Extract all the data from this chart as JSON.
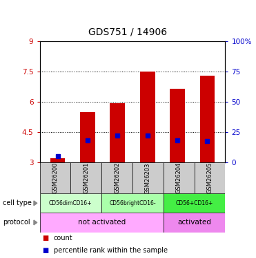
{
  "title": "GDS751 / 14906",
  "samples": [
    "GSM26200",
    "GSM26201",
    "GSM26202",
    "GSM26203",
    "GSM26204",
    "GSM26205"
  ],
  "count_values": [
    3.2,
    5.5,
    5.95,
    7.5,
    6.65,
    7.3
  ],
  "percentile_values": [
    3.3,
    4.1,
    4.35,
    4.35,
    4.1,
    4.05
  ],
  "ylim_left": [
    3,
    9
  ],
  "ylim_right": [
    0,
    100
  ],
  "yticks_left": [
    3,
    4.5,
    6,
    7.5,
    9
  ],
  "yticks_right": [
    0,
    25,
    50,
    75,
    100
  ],
  "ytick_labels_left": [
    "3",
    "4.5",
    "6",
    "7.5",
    "9"
  ],
  "ytick_labels_right": [
    "0",
    "25",
    "50",
    "75",
    "100%"
  ],
  "bar_bottom": 3.0,
  "bar_width": 0.5,
  "bar_color": "#cc0000",
  "percentile_color": "#0000cc",
  "percentile_size": 4,
  "grid_yticks": [
    4.5,
    6.0,
    7.5
  ],
  "cell_types": [
    {
      "label": "CD56dimCD16+",
      "cols": [
        0,
        1
      ],
      "color": "#ccffcc"
    },
    {
      "label": "CD56brightCD16-",
      "cols": [
        2,
        3
      ],
      "color": "#aaffaa"
    },
    {
      "label": "CD56+CD16+",
      "cols": [
        4,
        5
      ],
      "color": "#44ee44"
    }
  ],
  "protocols": [
    {
      "label": "not activated",
      "cols": [
        0,
        1,
        2,
        3
      ],
      "color": "#ffaaff"
    },
    {
      "label": "activated",
      "cols": [
        4,
        5
      ],
      "color": "#ee88ee"
    }
  ],
  "ylabel_left_color": "#cc0000",
  "ylabel_right_color": "#0000cc",
  "title_fontsize": 10,
  "tick_fontsize": 7.5,
  "sample_row_color": "#cccccc",
  "legend_red_label": "count",
  "legend_blue_label": "percentile rank within the sample"
}
